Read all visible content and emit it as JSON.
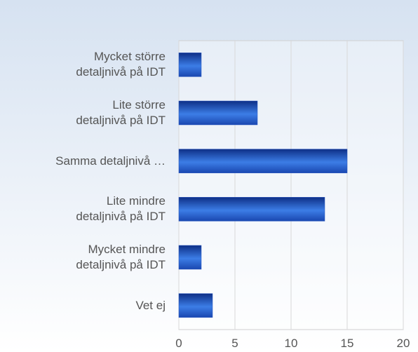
{
  "chart_data": {
    "type": "bar",
    "orientation": "horizontal",
    "categories": [
      "Mycket större\ndetaljnivå på IDT",
      "Lite större\ndetaljnivå på IDT",
      "Samma detaljnivå …",
      "Lite mindre\ndetaljnivå på IDT",
      "Mycket mindre\ndetaljnivå på IDT",
      "Vet ej"
    ],
    "values": [
      2,
      7,
      15,
      13,
      2,
      3
    ],
    "color": "#2554c0",
    "xlim": [
      0,
      20
    ],
    "xticks": [
      0,
      5,
      10,
      15,
      20
    ],
    "grid": true
  }
}
